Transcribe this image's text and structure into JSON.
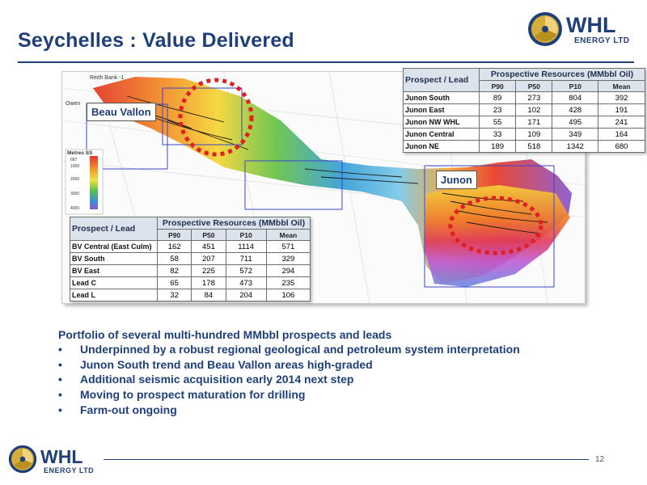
{
  "slide": {
    "title": "Seychelles : Value Delivered",
    "page_number": "12"
  },
  "logo": {
    "name": "WHL",
    "subtitle": "ENERGY LTD",
    "colors": {
      "navy": "#1f3f7a",
      "gold": "#c9a227"
    }
  },
  "map": {
    "labels": {
      "beau_vallon": "Beau Vallon",
      "junon": "Junon",
      "reith_bank": "Reith Bank -1",
      "owen": "Owen",
      "depth_legend_title": "Metres SS",
      "depth_ticks": [
        "687",
        "1000",
        "2000",
        "3000",
        "4000"
      ]
    },
    "highlight_color": "#e02020"
  },
  "table_junon": {
    "name_header": "Prospect / Lead",
    "resource_header": "Prospective Resources (MMbbl Oil)",
    "columns": [
      "P90",
      "P50",
      "P10",
      "Mean"
    ],
    "rows": [
      {
        "name": "Junon South",
        "values": [
          "89",
          "273",
          "804",
          "392"
        ]
      },
      {
        "name": "Junon East",
        "values": [
          "23",
          "102",
          "428",
          "191"
        ]
      },
      {
        "name": "Junon NW WHL",
        "values": [
          "55",
          "171",
          "495",
          "241"
        ]
      },
      {
        "name": "Junon Central",
        "values": [
          "33",
          "109",
          "349",
          "164"
        ]
      },
      {
        "name": "Junon NE",
        "values": [
          "189",
          "518",
          "1342",
          "680"
        ]
      }
    ]
  },
  "table_beau_vallon": {
    "name_header": "Prospect / Lead",
    "resource_header": "Prospective Resources (MMbbl Oil)",
    "columns": [
      "P90",
      "P50",
      "P10",
      "Mean"
    ],
    "rows": [
      {
        "name": "BV Central (East Culm)",
        "values": [
          "162",
          "451",
          "1114",
          "571"
        ]
      },
      {
        "name": "BV South",
        "values": [
          "58",
          "207",
          "711",
          "329"
        ]
      },
      {
        "name": "BV East",
        "values": [
          "82",
          "225",
          "572",
          "294"
        ]
      },
      {
        "name": "Lead C",
        "values": [
          "65",
          "178",
          "473",
          "235"
        ]
      },
      {
        "name": "Lead L",
        "values": [
          "32",
          "84",
          "204",
          "106"
        ]
      }
    ]
  },
  "summary": {
    "lead": "Portfolio of several multi-hundred MMbbl prospects and leads",
    "bullet_glyph": "•",
    "bullets": [
      "Underpinned by a robust regional geological and petroleum system interpretation",
      "Junon South trend and Beau Vallon areas high-graded",
      "Additional seismic acquisition early 2014 next step",
      "Moving to prospect maturation for drilling",
      "Farm-out ongoing"
    ]
  }
}
